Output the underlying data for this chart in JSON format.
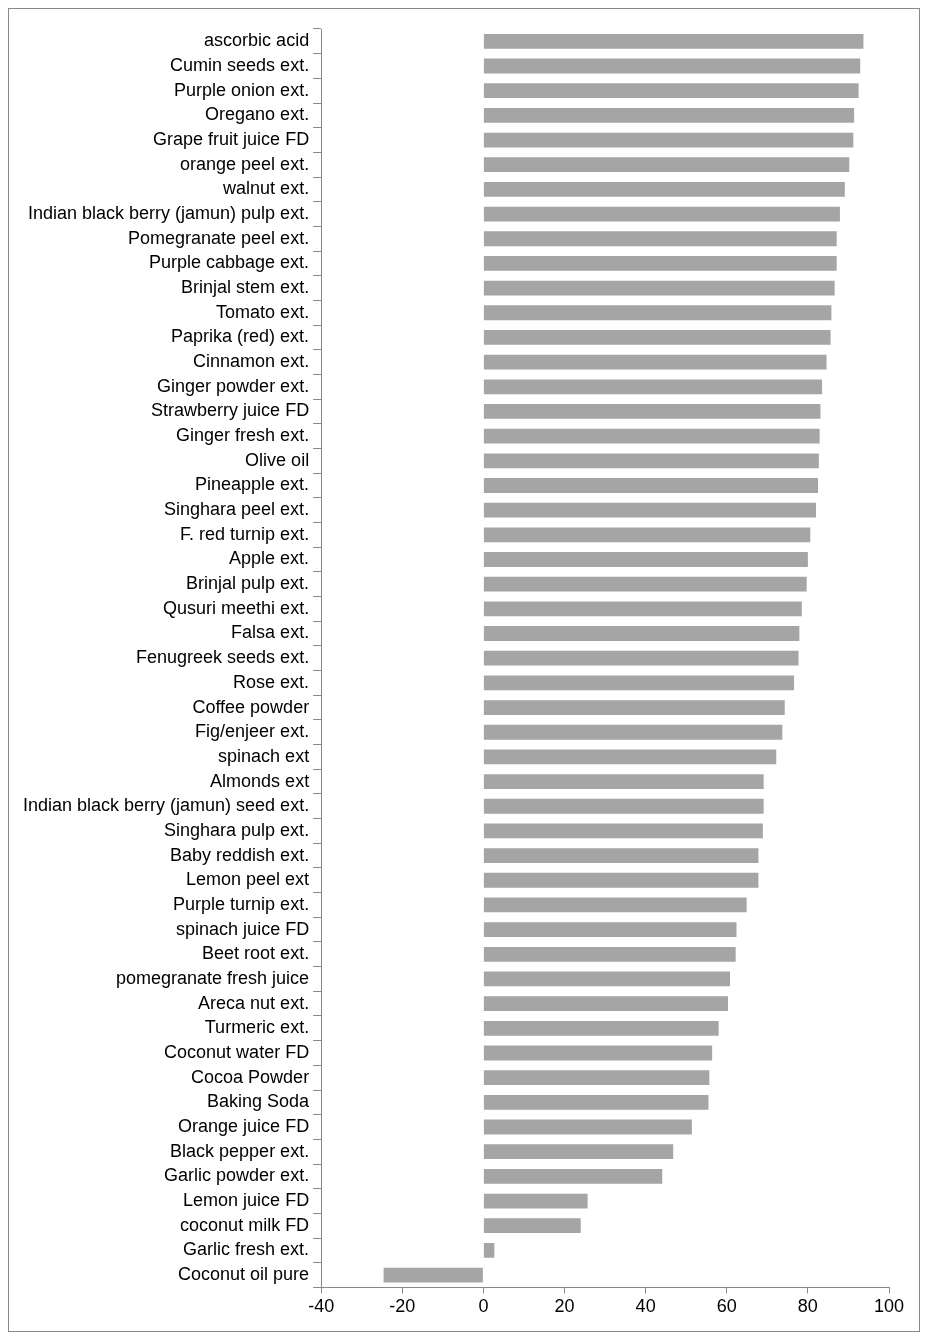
{
  "chart_data": {
    "type": "bar",
    "orientation": "horizontal",
    "color": "#a5a5a5",
    "categories": [
      "ascorbic acid",
      "Cumin seeds ext.",
      "Purple onion ext.",
      "Oregano ext.",
      "Grape fruit juice FD",
      "orange peel ext.",
      "walnut ext.",
      "Indian black berry (jamun) pulp ext.",
      "Pomegranate peel ext.",
      "Purple cabbage ext.",
      "Brinjal stem ext.",
      "Tomato ext.",
      "Paprika (red) ext.",
      "Cinnamon ext.",
      "Ginger powder ext.",
      "Strawberry juice FD",
      "Ginger fresh ext.",
      "Olive oil",
      "Pineapple ext.",
      "Singhara peel ext.",
      "F. red turnip ext.",
      "Apple ext.",
      "Brinjal pulp ext.",
      "Qusuri meethi ext.",
      "Falsa ext.",
      "Fenugreek seeds ext.",
      "Rose ext.",
      "Coffee powder",
      "Fig/enjeer ext.",
      "spinach ext",
      "Almonds ext",
      "Indian black berry (jamun) seed ext.",
      "Singhara pulp ext.",
      "Baby reddish ext.",
      "Lemon peel ext",
      "Purple turnip ext.",
      "spinach juice FD",
      "Beet root ext.",
      "pomegranate fresh juice",
      "Areca nut ext.",
      "Turmeric ext.",
      "Coconut water FD",
      "Cocoa Powder",
      "Baking Soda",
      "Orange juice FD",
      "Black pepper ext.",
      "Garlic powder ext.",
      "Lemon juice FD",
      "coconut milk FD",
      "Garlic fresh ext.",
      "Coconut oil pure"
    ],
    "values": [
      93.7,
      92.9,
      92.5,
      91.4,
      91.2,
      90.2,
      89.1,
      87.9,
      87.1,
      87.1,
      86.6,
      85.8,
      85.6,
      84.6,
      83.5,
      83.1,
      82.9,
      82.7,
      82.5,
      82.0,
      80.6,
      80.0,
      79.7,
      78.5,
      77.9,
      77.7,
      76.6,
      74.3,
      73.7,
      72.2,
      69.1,
      69.1,
      68.9,
      67.8,
      67.8,
      64.9,
      62.4,
      62.2,
      60.8,
      60.3,
      58.0,
      56.4,
      55.7,
      55.5,
      51.4,
      46.8,
      44.1,
      25.7,
      24.0,
      2.7,
      -24.6
    ],
    "xlim": [
      -40,
      100
    ],
    "xticks": [
      -40,
      -20,
      0,
      20,
      40,
      60,
      80,
      100
    ],
    "grid": false,
    "legend": false
  }
}
